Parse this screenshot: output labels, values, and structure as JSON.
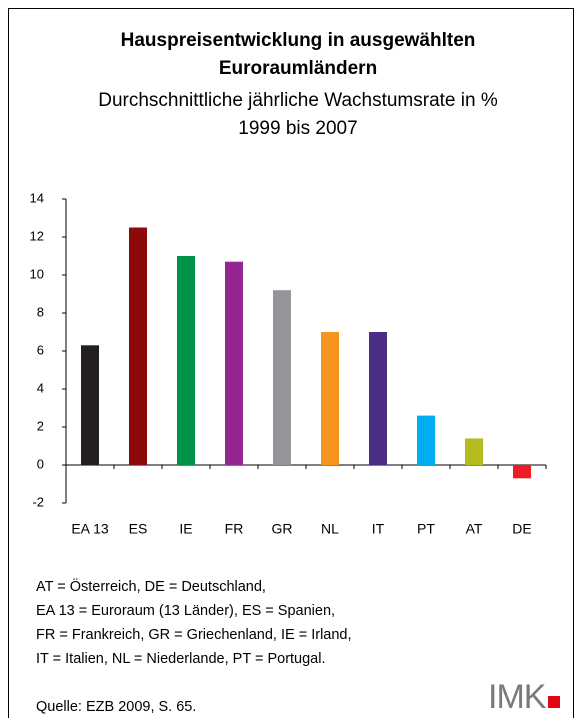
{
  "chart_data": {
    "type": "bar",
    "title": [
      "Hauspreisentwicklung in ausgewählten",
      "Euroraumländern"
    ],
    "subtitle": [
      "Durchschnittliche jährliche Wachstumsrate in %",
      "1999 bis 2007"
    ],
    "categories": [
      "EA 13",
      "ES",
      "IE",
      "FR",
      "GR",
      "NL",
      "IT",
      "PT",
      "AT",
      "DE"
    ],
    "values": [
      6.3,
      12.5,
      11.0,
      10.7,
      9.2,
      7.0,
      7.0,
      2.6,
      1.4,
      -0.7
    ],
    "colors": [
      "#231f20",
      "#8c0a0a",
      "#00924a",
      "#93278f",
      "#939598",
      "#f7941d",
      "#4b2e83",
      "#00aeef",
      "#b5bd1e",
      "#ed1c24"
    ],
    "ylim": [
      -2,
      14
    ],
    "yticks": [
      -2,
      0,
      2,
      4,
      6,
      8,
      10,
      12,
      14
    ],
    "notes": [
      "AT = Österreich, DE = Deutschland,",
      "EA 13 = Euroraum (13 Länder), ES = Spanien,",
      "FR = Frankreich, GR = Griechenland, IE = Irland,",
      "IT = Italien, NL = Niederlande, PT = Portugal."
    ],
    "source": "Quelle: EZB 2009, S. 65.",
    "logo": "IMK"
  }
}
